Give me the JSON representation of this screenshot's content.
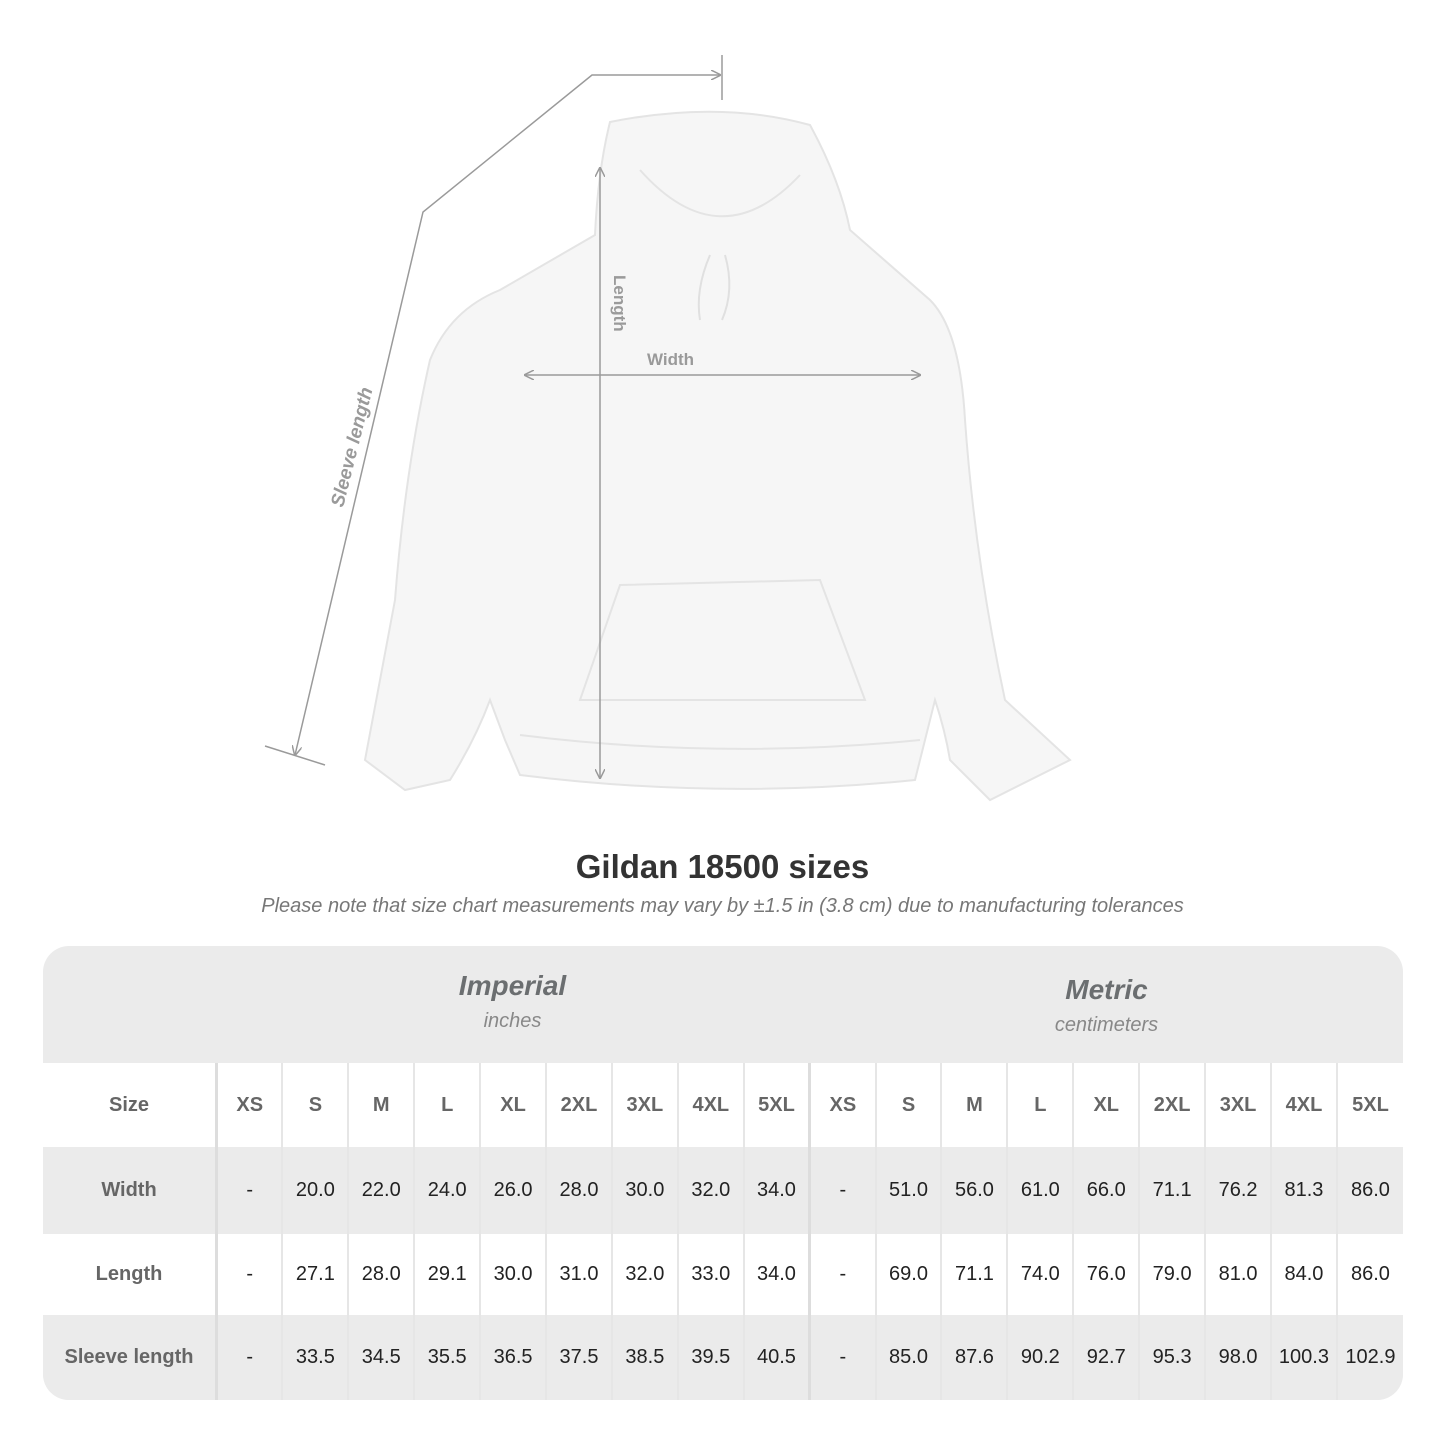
{
  "diagram": {
    "labels": {
      "length": "Length",
      "width": "Width",
      "sleeve": "Sleeve length"
    },
    "colors": {
      "garment": "#f6f6f6",
      "measure_line": "#9a9a9a"
    }
  },
  "title": "Gildan 18500 sizes",
  "note": "Please note that size chart measurements may vary by ±1.5 in (3.8 cm) due to manufacturing tolerances",
  "imperial": {
    "label": "Imperial",
    "unit": "inches"
  },
  "metric": {
    "label": "Metric",
    "unit": "centimeters"
  },
  "table": {
    "size_label": "Size",
    "sizes": [
      "XS",
      "S",
      "M",
      "L",
      "XL",
      "2XL",
      "3XL",
      "4XL",
      "5XL"
    ],
    "rows": [
      {
        "label": "Width",
        "imperial": [
          "-",
          "20.0",
          "22.0",
          "24.0",
          "26.0",
          "28.0",
          "30.0",
          "32.0",
          "34.0"
        ],
        "metric": [
          "-",
          "51.0",
          "56.0",
          "61.0",
          "66.0",
          "71.1",
          "76.2",
          "81.3",
          "86.0"
        ]
      },
      {
        "label": "Length",
        "imperial": [
          "-",
          "27.1",
          "28.0",
          "29.1",
          "30.0",
          "31.0",
          "32.0",
          "33.0",
          "34.0"
        ],
        "metric": [
          "-",
          "69.0",
          "71.1",
          "74.0",
          "76.0",
          "79.0",
          "81.0",
          "84.0",
          "86.0"
        ]
      },
      {
        "label": "Sleeve length",
        "imperial": [
          "-",
          "33.5",
          "34.5",
          "35.5",
          "36.5",
          "37.5",
          "38.5",
          "39.5",
          "40.5"
        ],
        "metric": [
          "-",
          "85.0",
          "87.6",
          "90.2",
          "92.7",
          "95.3",
          "98.0",
          "100.3",
          "102.9"
        ]
      }
    ]
  }
}
